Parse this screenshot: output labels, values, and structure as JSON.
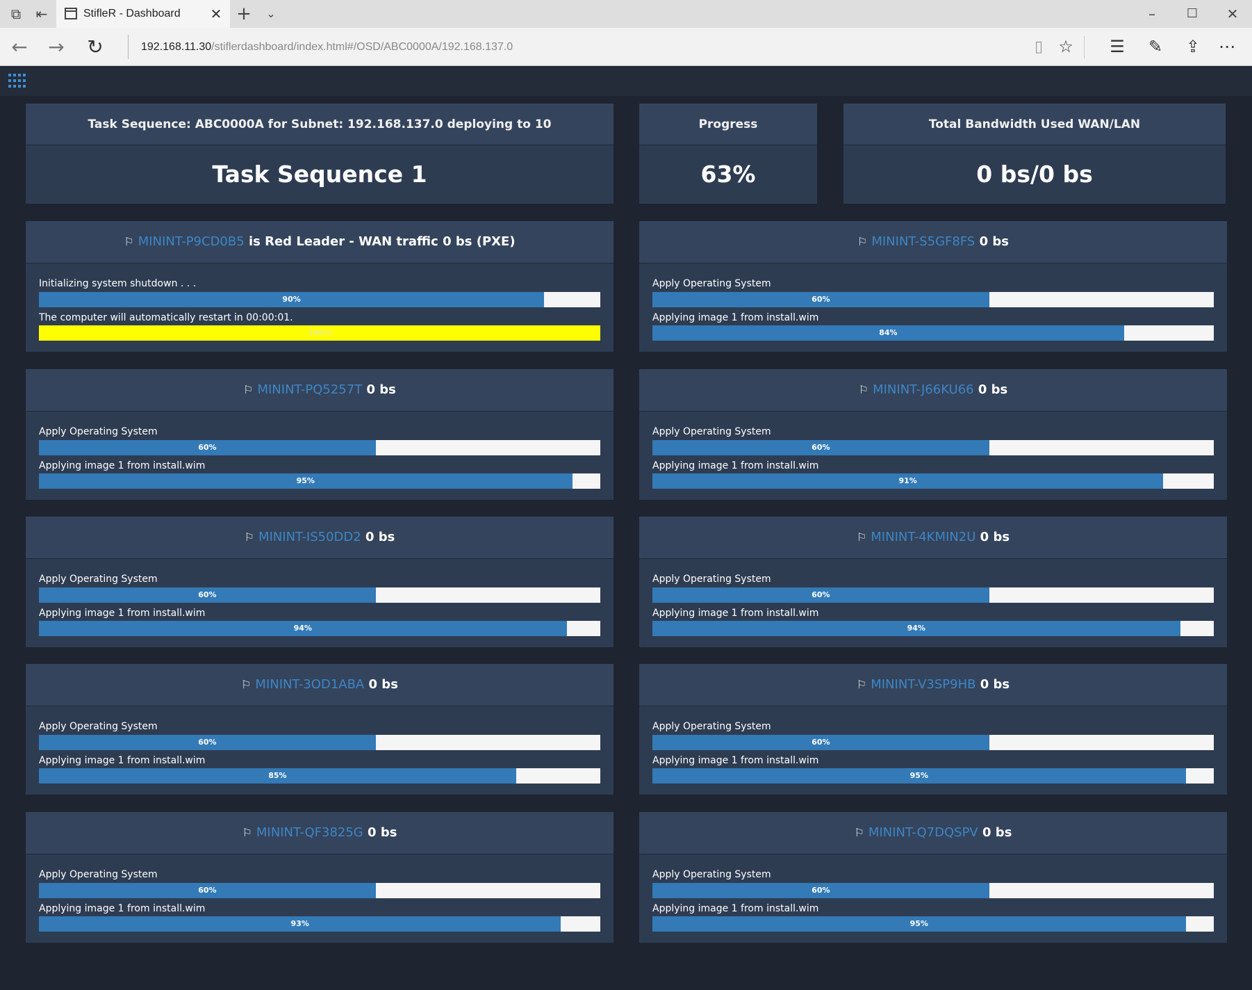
{
  "browser": {
    "tab_title": "StifleR - Dashboard",
    "url_host": "192.168.11.30",
    "url_path": "/stiflerdashboard/index.html#/OSD/ABC0000A/192.168.137.0"
  },
  "summary": {
    "task": {
      "header": "Task Sequence: ABC0000A for Subnet: 192.168.137.0 deploying to 10",
      "value": "Task Sequence 1"
    },
    "progress": {
      "header": "Progress",
      "value": "63%"
    },
    "bandwidth": {
      "header": "Total Bandwidth Used WAN/LAN",
      "value": "0 bs/0 bs"
    }
  },
  "machines": [
    {
      "name": "MININT-P9CD0B5",
      "suffix": " is Red Leader - WAN traffic 0 bs (PXE)",
      "step1": {
        "label": "Initializing system shutdown . . .",
        "percent": 90,
        "text": "90%"
      },
      "step2": {
        "label": "The computer will automatically restart in 00:00:01.",
        "percent": 100,
        "text": "100%",
        "style": "warning"
      }
    },
    {
      "name": "MININT-S5GF8FS",
      "suffix": " 0 bs",
      "step1": {
        "label": "Apply Operating System",
        "percent": 60,
        "text": "60%"
      },
      "step2": {
        "label": "Applying image 1 from install.wim",
        "percent": 84,
        "text": "84%"
      }
    },
    {
      "name": "MININT-PQ5257T",
      "suffix": " 0 bs",
      "step1": {
        "label": "Apply Operating System",
        "percent": 60,
        "text": "60%"
      },
      "step2": {
        "label": "Applying image 1 from install.wim",
        "percent": 95,
        "text": "95%"
      }
    },
    {
      "name": "MININT-J66KU66",
      "suffix": " 0 bs",
      "step1": {
        "label": "Apply Operating System",
        "percent": 60,
        "text": "60%"
      },
      "step2": {
        "label": "Applying image 1 from install.wim",
        "percent": 91,
        "text": "91%"
      }
    },
    {
      "name": "MININT-IS50DD2",
      "suffix": " 0 bs",
      "step1": {
        "label": "Apply Operating System",
        "percent": 60,
        "text": "60%"
      },
      "step2": {
        "label": "Applying image 1 from install.wim",
        "percent": 94,
        "text": "94%"
      }
    },
    {
      "name": "MININT-4KMIN2U",
      "suffix": " 0 bs",
      "step1": {
        "label": "Apply Operating System",
        "percent": 60,
        "text": "60%"
      },
      "step2": {
        "label": "Applying image 1 from install.wim",
        "percent": 94,
        "text": "94%"
      }
    },
    {
      "name": "MININT-3OD1ABA",
      "suffix": " 0 bs",
      "step1": {
        "label": "Apply Operating System",
        "percent": 60,
        "text": "60%"
      },
      "step2": {
        "label": "Applying image 1 from install.wim",
        "percent": 85,
        "text": "85%"
      }
    },
    {
      "name": "MININT-V3SP9HB",
      "suffix": " 0 bs",
      "step1": {
        "label": "Apply Operating System",
        "percent": 60,
        "text": "60%"
      },
      "step2": {
        "label": "Applying image 1 from install.wim",
        "percent": 95,
        "text": "95%"
      }
    },
    {
      "name": "MININT-QF3825G",
      "suffix": " 0 bs",
      "step1": {
        "label": "Apply Operating System",
        "percent": 60,
        "text": "60%"
      },
      "step2": {
        "label": "Applying image 1 from install.wim",
        "percent": 93,
        "text": "93%"
      }
    },
    {
      "name": "MININT-Q7DQSPV",
      "suffix": " 0 bs",
      "step1": {
        "label": "Apply Operating System",
        "percent": 60,
        "text": "60%"
      },
      "step2": {
        "label": "Applying image 1 from install.wim",
        "percent": 95,
        "text": "95%"
      }
    }
  ]
}
